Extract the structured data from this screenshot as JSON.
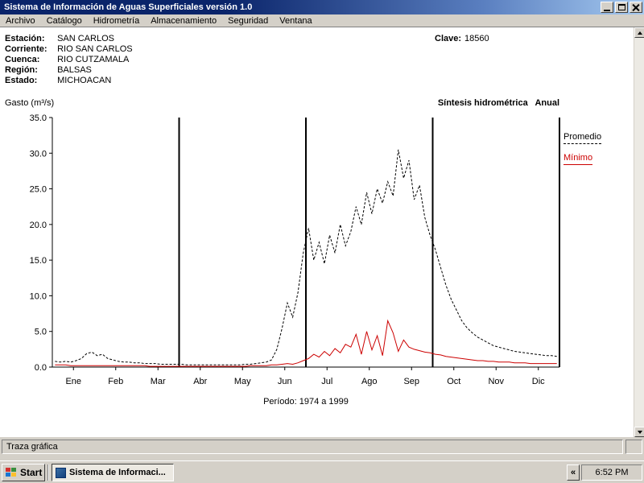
{
  "window": {
    "title": "Sistema de Información de Aguas Superficiales  versión 1.0"
  },
  "menu": {
    "items": [
      "Archivo",
      "Catálogo",
      "Hidrometría",
      "Almacenamiento",
      "Seguridad",
      "Ventana"
    ]
  },
  "info": {
    "rows": [
      {
        "label": "Estación:",
        "value": "SAN CARLOS"
      },
      {
        "label": "Corriente:",
        "value": "RIO SAN CARLOS"
      },
      {
        "label": "Cuenca:",
        "value": "RIO CUTZAMALA"
      },
      {
        "label": "Región:",
        "value": "BALSAS"
      },
      {
        "label": "Estado:",
        "value": "MICHOACAN"
      }
    ],
    "clave_label": "Clave:",
    "clave_value": "18560"
  },
  "chart_header": {
    "y_axis_title": "Gasto (m³/s)",
    "right_title": "Síntesis hidrométrica   Anual"
  },
  "legend": {
    "promedio": "Promedio",
    "minimo": "Mínimo"
  },
  "status": {
    "text": "Traza gráfica"
  },
  "taskbar": {
    "start_label": "Start",
    "task_label": "Sistema de Informaci...",
    "collapse_label": "«",
    "time": "6:52 PM"
  },
  "colors": {
    "titlebar_left": "#0a246a",
    "titlebar_right": "#a6caf0",
    "chrome": "#d4d0c8",
    "promedio_line": "#000000",
    "minimo_line": "#cc0000"
  },
  "chart_data": {
    "type": "line",
    "title": "Síntesis hidrométrica Anual",
    "xlabel": "Período: 1974 a 1999",
    "ylabel": "Gasto (m³/s)",
    "ylim": [
      0,
      35
    ],
    "ytick_step": 5,
    "ytick_labels": [
      "0.0",
      "5.0",
      "10.0",
      "15.0",
      "20.0",
      "25.0",
      "30.0",
      "35.0"
    ],
    "categories": [
      "Ene",
      "Feb",
      "Mar",
      "Abr",
      "May",
      "Jun",
      "Jul",
      "Ago",
      "Sep",
      "Oct",
      "Nov",
      "Dic"
    ],
    "divider_months": [
      3,
      6,
      9,
      12
    ],
    "samples_per_month": 8,
    "grid": false,
    "legend_position": "right",
    "series": [
      {
        "name": "Promedio",
        "color": "#000000",
        "style": "dashed",
        "values": [
          0.8,
          0.7,
          0.8,
          0.7,
          0.9,
          1.2,
          1.9,
          2.1,
          1.6,
          1.8,
          1.2,
          1.0,
          0.8,
          0.7,
          0.7,
          0.6,
          0.6,
          0.5,
          0.5,
          0.5,
          0.4,
          0.4,
          0.4,
          0.4,
          0.4,
          0.3,
          0.3,
          0.3,
          0.3,
          0.3,
          0.3,
          0.3,
          0.3,
          0.3,
          0.3,
          0.3,
          0.4,
          0.4,
          0.5,
          0.6,
          0.7,
          1.0,
          2.5,
          5.5,
          9.0,
          7.0,
          10.5,
          16.0,
          19.5,
          15.0,
          17.5,
          14.5,
          18.5,
          16.0,
          20.0,
          17.0,
          19.0,
          22.5,
          20.0,
          24.5,
          21.5,
          25.0,
          23.0,
          26.0,
          24.0,
          30.5,
          26.5,
          29.0,
          23.5,
          25.5,
          21.0,
          18.5,
          16.5,
          14.0,
          11.5,
          9.5,
          8.0,
          6.5,
          5.5,
          4.8,
          4.2,
          3.8,
          3.4,
          3.0,
          2.8,
          2.6,
          2.4,
          2.2,
          2.1,
          2.0,
          1.9,
          1.8,
          1.7,
          1.6,
          1.6,
          1.5
        ]
      },
      {
        "name": "Mínimo",
        "color": "#cc0000",
        "style": "solid",
        "values": [
          0.3,
          0.3,
          0.3,
          0.2,
          0.2,
          0.2,
          0.2,
          0.2,
          0.2,
          0.2,
          0.2,
          0.2,
          0.2,
          0.2,
          0.2,
          0.2,
          0.2,
          0.2,
          0.1,
          0.1,
          0.1,
          0.1,
          0.1,
          0.1,
          0.1,
          0.1,
          0.1,
          0.1,
          0.1,
          0.1,
          0.1,
          0.1,
          0.1,
          0.1,
          0.1,
          0.1,
          0.1,
          0.2,
          0.2,
          0.2,
          0.2,
          0.3,
          0.3,
          0.4,
          0.5,
          0.4,
          0.6,
          0.9,
          1.2,
          1.8,
          1.4,
          2.2,
          1.6,
          2.6,
          2.0,
          3.2,
          2.8,
          4.6,
          1.8,
          5.0,
          2.4,
          4.4,
          1.6,
          6.5,
          4.8,
          2.2,
          3.8,
          2.8,
          2.5,
          2.3,
          2.1,
          2.0,
          1.8,
          1.7,
          1.5,
          1.4,
          1.3,
          1.2,
          1.1,
          1.0,
          0.9,
          0.9,
          0.8,
          0.8,
          0.7,
          0.7,
          0.7,
          0.6,
          0.6,
          0.6,
          0.5,
          0.5,
          0.5,
          0.5,
          0.5,
          0.5
        ]
      }
    ]
  }
}
